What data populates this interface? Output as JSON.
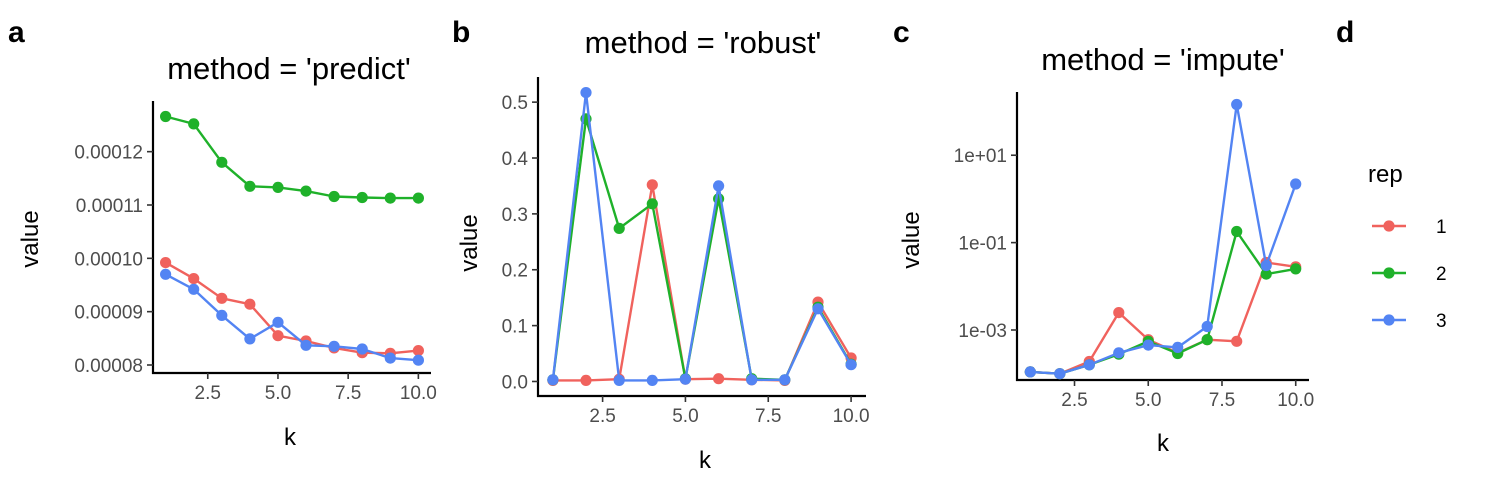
{
  "legend": {
    "title": "rep",
    "entries": [
      {
        "label": "1",
        "color": "#f0625d"
      },
      {
        "label": "2",
        "color": "#1fb12a"
      },
      {
        "label": "3",
        "color": "#5384f3"
      }
    ]
  },
  "chart_data": [
    {
      "letter": "a",
      "type": "line",
      "title": "method = 'predict'",
      "xlabel": "k",
      "ylabel": "value",
      "yscale": "linear",
      "xlim": [
        0.55,
        10.45
      ],
      "ylim": [
        7.85e-05,
        0.0001295
      ],
      "xticks": [
        2.5,
        5.0,
        7.5,
        10.0
      ],
      "xtick_labels": [
        "2.5",
        "5.0",
        "7.5",
        "10.0"
      ],
      "yticks": [
        8e-05,
        9e-05,
        0.0001,
        0.00011,
        0.00012
      ],
      "ytick_labels": [
        "0.00008",
        "0.00009",
        "0.00010",
        "0.00011",
        "0.00012"
      ],
      "x": [
        1,
        2,
        3,
        4,
        5,
        6,
        7,
        8,
        9,
        10
      ],
      "series": [
        {
          "name": "1",
          "color": "#f0625d",
          "values": [
            9.92e-05,
            9.62e-05,
            9.25e-05,
            9.14e-05,
            8.55e-05,
            8.45e-05,
            8.32e-05,
            8.23e-05,
            8.22e-05,
            8.27e-05
          ]
        },
        {
          "name": "2",
          "color": "#1fb12a",
          "values": [
            0.0001266,
            0.0001252,
            0.000118,
            0.0001135,
            0.0001133,
            0.0001126,
            0.0001116,
            0.0001114,
            0.0001113,
            0.0001113
          ]
        },
        {
          "name": "3",
          "color": "#5384f3",
          "values": [
            9.7e-05,
            9.42e-05,
            8.93e-05,
            8.49e-05,
            8.8e-05,
            8.37e-05,
            8.35e-05,
            8.3e-05,
            8.13e-05,
            8.09e-05
          ]
        }
      ]
    },
    {
      "letter": "b",
      "type": "line",
      "title": "method = 'robust'",
      "xlabel": "k",
      "ylabel": "value",
      "yscale": "linear",
      "xlim": [
        0.55,
        10.45
      ],
      "ylim": [
        -0.026,
        0.545
      ],
      "xticks": [
        2.5,
        5.0,
        7.5,
        10.0
      ],
      "xtick_labels": [
        "2.5",
        "5.0",
        "7.5",
        "10.0"
      ],
      "yticks": [
        0,
        0.1,
        0.2,
        0.3,
        0.4,
        0.5
      ],
      "ytick_labels": [
        "0.0",
        "0.1",
        "0.2",
        "0.3",
        "0.4",
        "0.5"
      ],
      "x": [
        1,
        2,
        3,
        4,
        5,
        6,
        7,
        8,
        9,
        10
      ],
      "series": [
        {
          "name": "1",
          "color": "#f0625d",
          "values": [
            0.002,
            0.002,
            0.004,
            0.352,
            0.004,
            0.005,
            0.003,
            0.002,
            0.142,
            0.042
          ]
        },
        {
          "name": "2",
          "color": "#1fb12a",
          "values": [
            0.003,
            0.47,
            0.274,
            0.318,
            0.005,
            0.327,
            0.005,
            0.003,
            0.133,
            0.031
          ]
        },
        {
          "name": "3",
          "color": "#5384f3",
          "values": [
            0.003,
            0.517,
            0.002,
            0.002,
            0.004,
            0.35,
            0.003,
            0.003,
            0.13,
            0.03
          ]
        }
      ]
    },
    {
      "letter": "c",
      "type": "line",
      "title": "method = 'impute'",
      "xlabel": "k",
      "ylabel": "value",
      "yscale": "log",
      "xlim": [
        0.55,
        10.45
      ],
      "ylim": [
        7.17e-05,
        280
      ],
      "xticks": [
        2.5,
        5.0,
        7.5,
        10.0
      ],
      "xtick_labels": [
        "2.5",
        "5.0",
        "7.5",
        "10.0"
      ],
      "yticks": [
        0.001,
        0.1,
        10
      ],
      "ytick_labels": [
        "1e-03",
        "1e-01",
        "1e+01"
      ],
      "x": [
        1,
        2,
        3,
        4,
        5,
        6,
        7,
        8,
        9,
        10
      ],
      "series": [
        {
          "name": "1",
          "color": "#f0625d",
          "values": [
            0.00011,
            0.0001,
            0.00019,
            0.0025,
            0.0006,
            0.0003,
            0.0006,
            0.00055,
            0.035,
            0.028
          ]
        },
        {
          "name": "2",
          "color": "#1fb12a",
          "values": [
            0.00011,
            0.0001,
            0.00016,
            0.00028,
            0.00055,
            0.00029,
            0.0006,
            0.18,
            0.019,
            0.025
          ]
        },
        {
          "name": "3",
          "color": "#5384f3",
          "values": [
            0.00011,
            0.0001,
            0.00016,
            0.0003,
            0.00045,
            0.0004,
            0.0012,
            145,
            0.03,
            2.2
          ]
        }
      ]
    }
  ],
  "legend_panel_letter": "d"
}
